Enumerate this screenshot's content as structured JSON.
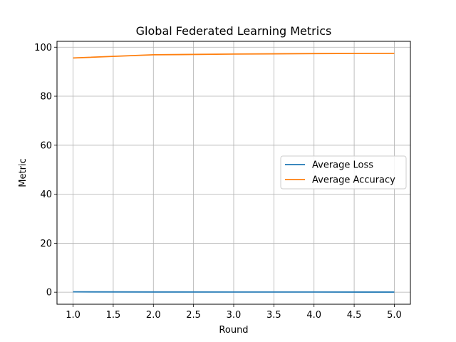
{
  "chart_data": {
    "type": "line",
    "title": "Global Federated Learning Metrics",
    "xlabel": "Round",
    "ylabel": "Metric",
    "x": [
      1,
      2,
      3,
      4,
      5
    ],
    "series": [
      {
        "name": "Average Loss",
        "color": "#1f77b4",
        "values": [
          0.15,
          0.1,
          0.08,
          0.07,
          0.06
        ]
      },
      {
        "name": "Average Accuracy",
        "color": "#ff7f0e",
        "values": [
          95.6,
          96.9,
          97.2,
          97.4,
          97.5
        ]
      }
    ],
    "xlim": [
      0.8,
      5.2
    ],
    "ylim": [
      -4.9,
      102.4
    ],
    "xticks": [
      "1.0",
      "1.5",
      "2.0",
      "2.5",
      "3.0",
      "3.5",
      "4.0",
      "4.5",
      "5.0"
    ],
    "yticks": [
      "0",
      "20",
      "40",
      "60",
      "80",
      "100"
    ],
    "grid": true,
    "legend_position": "center-right"
  }
}
